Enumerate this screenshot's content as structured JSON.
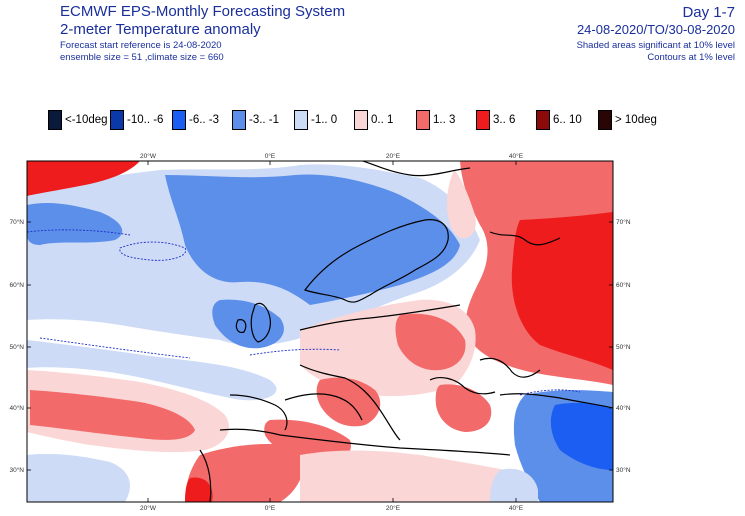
{
  "header": {
    "title": "ECMWF EPS-Monthly Forecasting System",
    "subtitle": "2-meter Temperature anomaly",
    "forecast_ref": "Forecast start reference is 24-08-2020",
    "ensemble": "ensemble size = 51  ,climate size = 660",
    "day": "Day 1-7",
    "period": "24-08-2020/TO/30-08-2020",
    "sig_note": "Shaded areas significant at 10% level",
    "contour_note": "Contours at 1% level"
  },
  "legend": [
    {
      "label": "<-10deg",
      "color": "#0a1a3a"
    },
    {
      "label": "-10.. -6",
      "color": "#0b3aa8"
    },
    {
      "label": "-6.. -3",
      "color": "#1c5df2"
    },
    {
      "label": "-3.. -1",
      "color": "#5c8fea"
    },
    {
      "label": "-1.. 0",
      "color": "#cddbf7"
    },
    {
      "label": "0.. 1",
      "color": "#fbd6d6"
    },
    {
      "label": "1.. 3",
      "color": "#f26a6a"
    },
    {
      "label": "3.. 6",
      "color": "#ee1c1c"
    },
    {
      "label": "6.. 10",
      "color": "#8c0a0a"
    },
    {
      "label": "> 10deg",
      "color": "#2a0505"
    }
  ],
  "axes": {
    "lon_labels": [
      "20°W",
      "0°E",
      "20°E",
      "40°E"
    ],
    "lat_labels": [
      "70°N",
      "60°N",
      "50°N",
      "40°N",
      "30°N"
    ]
  }
}
